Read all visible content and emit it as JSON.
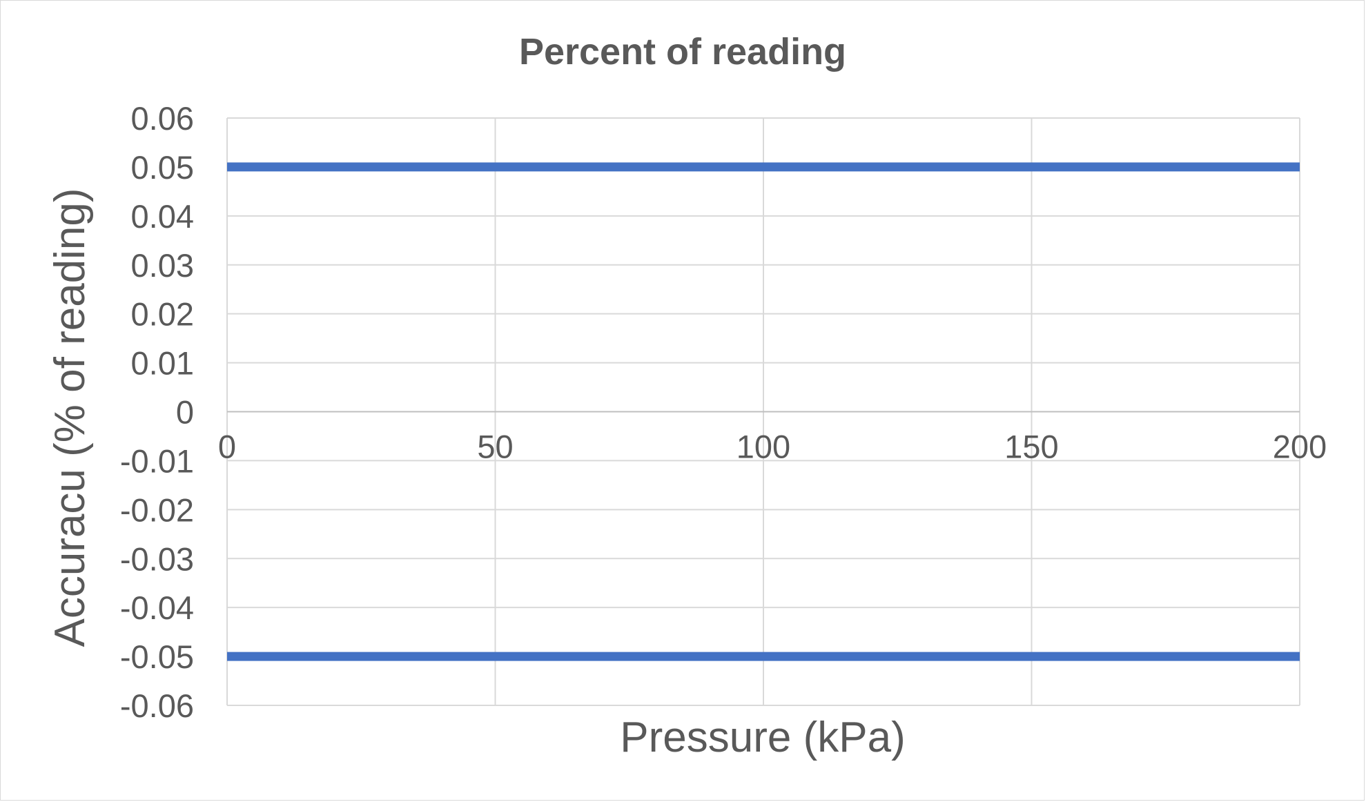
{
  "chart_data": {
    "type": "line",
    "title": "Percent of reading",
    "xlabel": "Pressure (kPa)",
    "ylabel": "Accuracu (% of reading)",
    "xlim": [
      0,
      200
    ],
    "ylim": [
      -0.06,
      0.06
    ],
    "x_ticks": [
      0,
      50,
      100,
      150,
      200
    ],
    "x_tick_labels": [
      "0",
      "50",
      "100",
      "150",
      "200"
    ],
    "y_ticks": [
      0.06,
      0.05,
      0.04,
      0.03,
      0.02,
      0.01,
      0,
      -0.01,
      -0.02,
      -0.03,
      -0.04,
      -0.05,
      -0.06
    ],
    "y_tick_labels": [
      "0.06",
      "0.05",
      "0.04",
      "0.03",
      "0.02",
      "0.01",
      "0",
      "-0.01",
      "-0.02",
      "-0.03",
      "-0.04",
      "-0.05",
      "-0.06"
    ],
    "grid": true,
    "legend": "none",
    "series": [
      {
        "x": [
          0,
          200
        ],
        "values": [
          0.05,
          0.05
        ],
        "color": "#4472c4"
      },
      {
        "x": [
          0,
          200
        ],
        "values": [
          -0.05,
          -0.05
        ],
        "color": "#4472c4"
      }
    ],
    "gridline_color": "#d9d9d9",
    "zero_line_color": "#bfbfbf",
    "text_color": "#595959"
  }
}
